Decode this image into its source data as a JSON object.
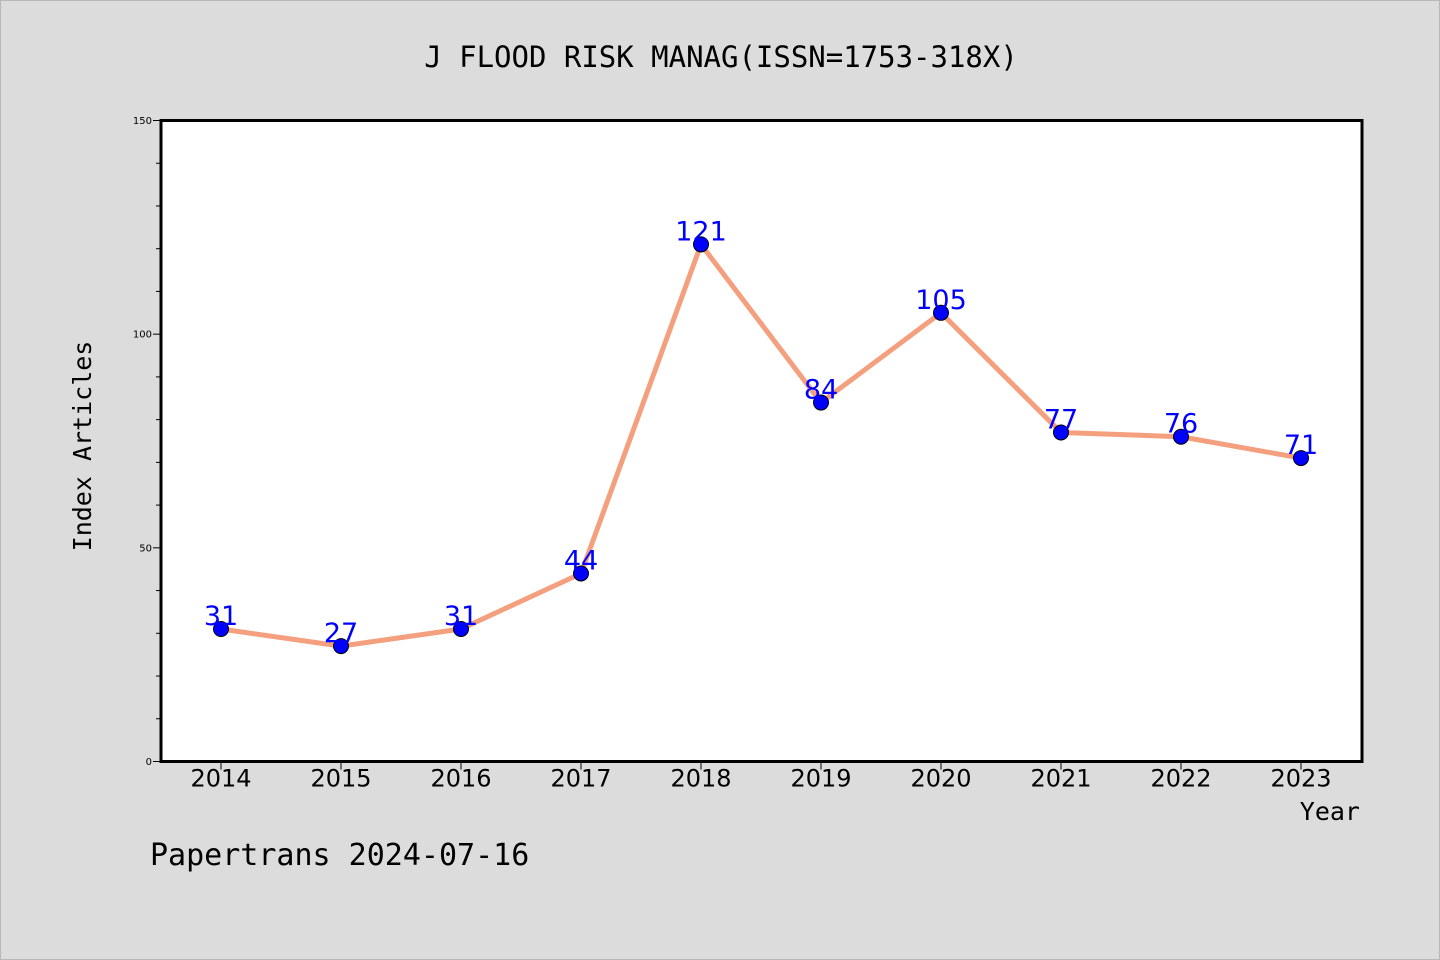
{
  "chart_data": {
    "type": "line",
    "title": "J FLOOD RISK MANAG(ISSN=1753-318X)",
    "xlabel": "Year",
    "ylabel": "Index Articles",
    "categories": [
      "2014",
      "2015",
      "2016",
      "2017",
      "2018",
      "2019",
      "2020",
      "2021",
      "2022",
      "2023"
    ],
    "values": [
      31,
      27,
      31,
      44,
      121,
      84,
      105,
      77,
      76,
      71
    ],
    "ylim": [
      0,
      150
    ],
    "yticks": [
      0,
      50,
      100,
      150
    ],
    "grid": false,
    "line_color": "#f4a07e",
    "marker_color": "#0000ff",
    "label_color": "#0000ff"
  },
  "footer": {
    "text": "Papertrans 2024-07-16"
  }
}
